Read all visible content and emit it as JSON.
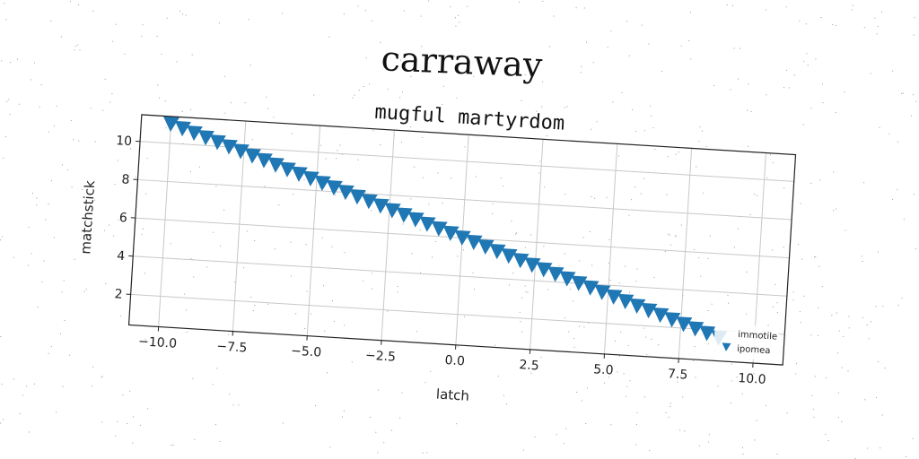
{
  "chart_data": {
    "type": "scatter",
    "title": "carraway",
    "subtitle": "mugful martyrdom",
    "xlabel": "latch",
    "ylabel": "matchstick",
    "xlim": [
      -11,
      11
    ],
    "ylim": [
      0.4,
      11.4
    ],
    "xticks": [
      -10.0,
      -7.5,
      -5.0,
      -2.5,
      0.0,
      2.5,
      5.0,
      7.5,
      10.0
    ],
    "xtick_labels": [
      "−10.0",
      "−7.5",
      "−5.0",
      "−2.5",
      "0.0",
      "2.5",
      "5.0",
      "7.5",
      "10.0"
    ],
    "yticks": [
      2,
      4,
      6,
      8,
      10
    ],
    "ytick_labels": [
      "2",
      "4",
      "6",
      "8",
      "10"
    ],
    "grid": true,
    "legend_position": "bottom-right",
    "series": [
      {
        "name": "immotile",
        "marker": "none",
        "color": "#1f77b4",
        "x": [],
        "y": []
      },
      {
        "name": "ipomea",
        "marker": "triangle-down",
        "color": "#1f77b4",
        "x": [
          -10.0,
          -9.6,
          -9.2,
          -8.8,
          -8.4,
          -8.0,
          -7.6,
          -7.2,
          -6.8,
          -6.4,
          -6.0,
          -5.6,
          -5.2,
          -4.8,
          -4.4,
          -4.0,
          -3.6,
          -3.2,
          -2.8,
          -2.4,
          -2.0,
          -1.6,
          -1.2,
          -0.8,
          -0.4,
          0.0,
          0.4,
          0.8,
          1.2,
          1.6,
          2.0,
          2.4,
          2.8,
          3.2,
          3.6,
          4.0,
          4.4,
          4.8,
          5.2,
          5.6,
          6.0,
          6.4,
          6.8,
          7.2,
          7.6,
          8.0,
          8.4,
          8.8
        ],
        "y": [
          11.0,
          10.8,
          10.6,
          10.4,
          10.2,
          10.0,
          9.8,
          9.6,
          9.4,
          9.2,
          9.0,
          8.8,
          8.6,
          8.4,
          8.2,
          8.0,
          7.8,
          7.6,
          7.4,
          7.2,
          7.0,
          6.8,
          6.6,
          6.4,
          6.2,
          6.0,
          5.8,
          5.6,
          5.4,
          5.2,
          5.0,
          4.8,
          4.6,
          4.4,
          4.2,
          4.0,
          3.8,
          3.6,
          3.4,
          3.2,
          3.0,
          2.8,
          2.6,
          2.4,
          2.2,
          2.0,
          1.8,
          1.6
        ]
      }
    ]
  }
}
